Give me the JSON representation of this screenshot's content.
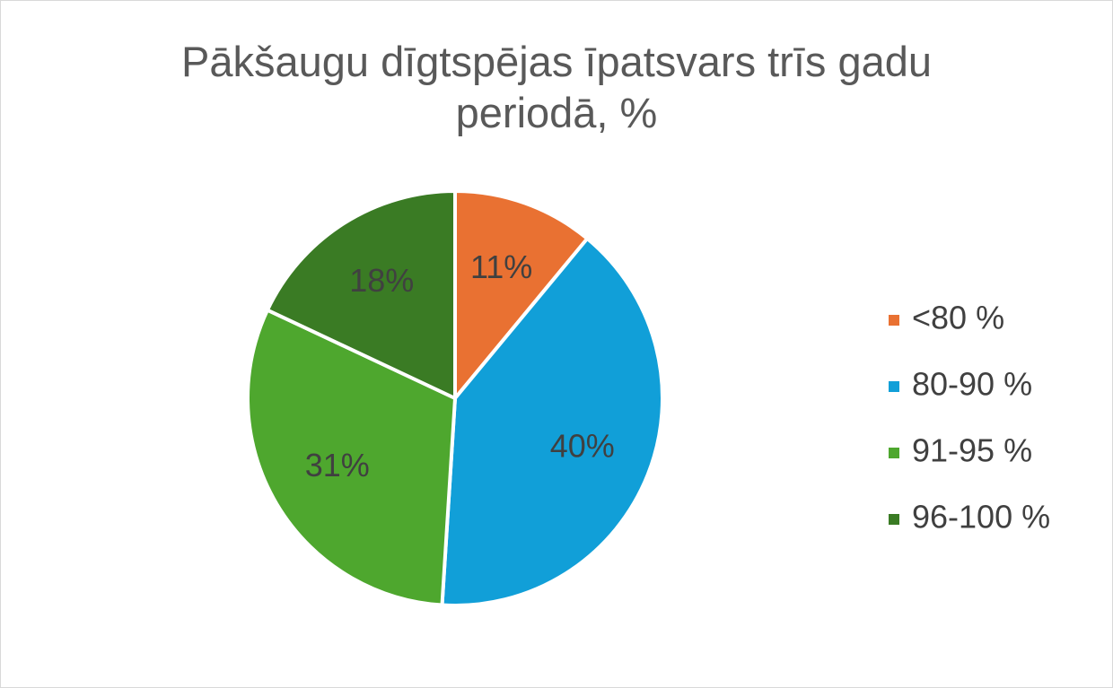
{
  "chart_data": {
    "type": "pie",
    "title": "Pākšaugu dīgtspējas īpatsvars trīs gadu periodā, %",
    "categories": [
      "<80 %",
      "80-90 %",
      "91-95 %",
      "96-100 %"
    ],
    "values": [
      11,
      40,
      31,
      18
    ],
    "value_labels": [
      "11%",
      "40%",
      "31%",
      "18%"
    ],
    "colors": [
      "#e97132",
      "#119fd8",
      "#4ea72e",
      "#3a7b24"
    ],
    "legend": "right"
  }
}
